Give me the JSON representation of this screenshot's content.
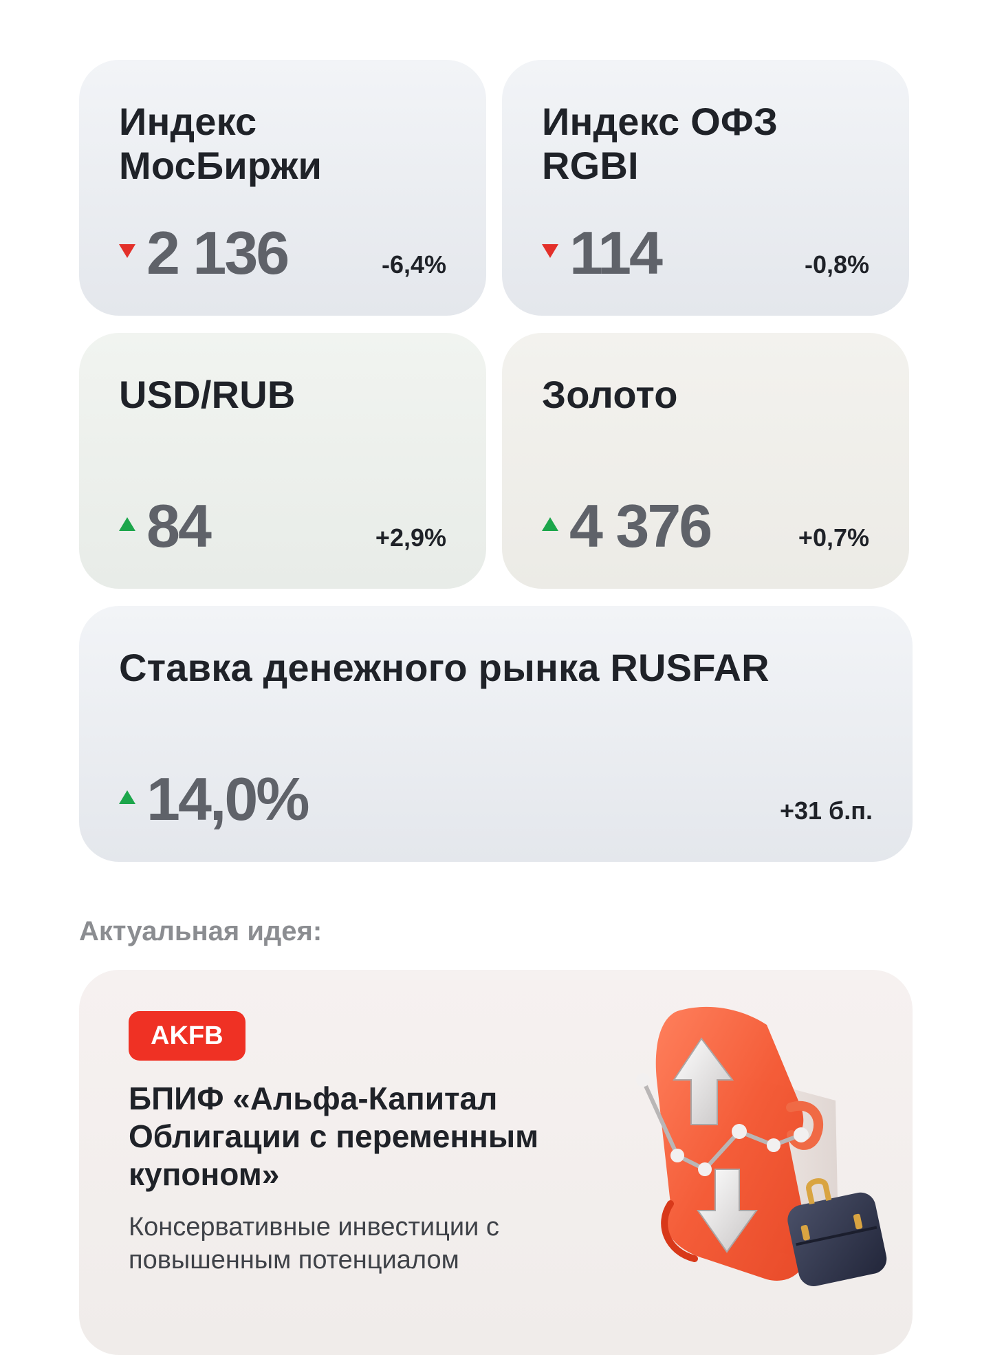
{
  "cards": {
    "moex": {
      "title": "Индекс МосБиржи",
      "value": "2 136",
      "change": "-6,4%",
      "direction": "down"
    },
    "rgbi": {
      "title": "Индекс ОФЗ RGBI",
      "value": "114",
      "change": "-0,8%",
      "direction": "down"
    },
    "usdrub": {
      "title": "USD/RUB",
      "value": "84",
      "change": "+2,9%",
      "direction": "up"
    },
    "gold": {
      "title": "Золото",
      "value": "4 376",
      "change": "+0,7%",
      "direction": "up"
    },
    "rusfar": {
      "title": "Ставка денежного рынка RUSFAR",
      "value": "14,0%",
      "change": "+31 б.п.",
      "direction": "up"
    }
  },
  "idea": {
    "heading": "Актуальная идея:",
    "ticker": "AKFB",
    "title": "БПИФ «Альфа-Капитал Облигации с переменным купоном»",
    "description": "Консервативные инвестиции с повышенным потенциалом",
    "illustration": "bond-document-with-arrows-and-briefcase-icon"
  },
  "colors": {
    "down": "#e3302a",
    "up": "#1ca64b",
    "accent": "#ef3124",
    "value_text": "#5f6269"
  }
}
